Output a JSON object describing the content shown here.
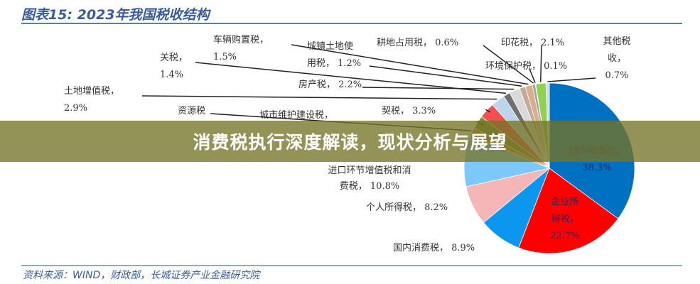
{
  "chart_data": {
    "type": "pie",
    "title": "图表15: 2023年我国税收结构",
    "source": "资料来源：WIND，财政部，长城证券产业金融研究院",
    "slices": [
      {
        "name": "国内增值税",
        "value": 38.3,
        "label": [
          "国内增值税，",
          "38.3%"
        ],
        "color": "#0070c0"
      },
      {
        "name": "企业所得税",
        "value": 22.7,
        "label": [
          "企业所",
          "得税，",
          "22.7%"
        ],
        "color": "#ff0000"
      },
      {
        "name": "国内消费税",
        "value": 8.9,
        "label": [
          "国内消费税， 8.9%"
        ],
        "color": "#0b96f0"
      },
      {
        "name": "个人所得税",
        "value": 8.2,
        "label": [
          "个人所得税， 8.2%"
        ],
        "color": "#f4b6b6"
      },
      {
        "name": "进口环节增值税和消费税",
        "value": 10.8,
        "label": [
          "进口环节增值税和消",
          "费税， 10.8%"
        ],
        "color": "#7cc8f8"
      },
      {
        "name": "资源税",
        "value": 1.6,
        "label": [
          "资源税"
        ],
        "color": "#e07a20"
      },
      {
        "name": "城市维护建设税",
        "value": 2.7,
        "label": [
          "城市维护建设税，"
        ],
        "color": "#7e8f3a"
      },
      {
        "name": "契税",
        "value": 3.3,
        "label": [
          "契税， 3.3%"
        ],
        "color": "#f05050"
      },
      {
        "name": "土地增值税",
        "value": 2.9,
        "label": [
          "土地增值税，",
          "2.9%"
        ],
        "color": "#bcd4ec"
      },
      {
        "name": "关税",
        "value": 1.4,
        "label": [
          "关税，",
          "1.4%"
        ],
        "color": "#707070"
      },
      {
        "name": "房产税",
        "value": 2.2,
        "label": [
          "房产税， 2.2%"
        ],
        "color": "#d9d9d9"
      },
      {
        "name": "城镇土地使用税",
        "value": 1.2,
        "label": [
          "城镇土地使",
          "用税， 1.2%"
        ],
        "color": "#c4a898"
      },
      {
        "name": "车辆购置税",
        "value": 1.5,
        "label": [
          "车辆购置税，",
          "1.5%"
        ],
        "color": "#d8b090"
      },
      {
        "name": "耕地占用税",
        "value": 0.6,
        "label": [
          "耕地占用税， 0.6%"
        ],
        "color": "#a0a0a0"
      },
      {
        "name": "环境保护税",
        "value": 0.1,
        "label": [
          "环境保护税， 0.1%"
        ],
        "color": "#4a7a30"
      },
      {
        "name": "印花税",
        "value": 2.1,
        "label": [
          "印花税， 2.1%"
        ],
        "color": "#92d050"
      },
      {
        "name": "其他税收",
        "value": 0.7,
        "label": [
          "其他税",
          "收，",
          "0.7%"
        ],
        "color": "#c8dcf0"
      }
    ]
  },
  "banner": {
    "text": "消费税执行深度解读，现状分析与展望",
    "color": "#767428"
  }
}
